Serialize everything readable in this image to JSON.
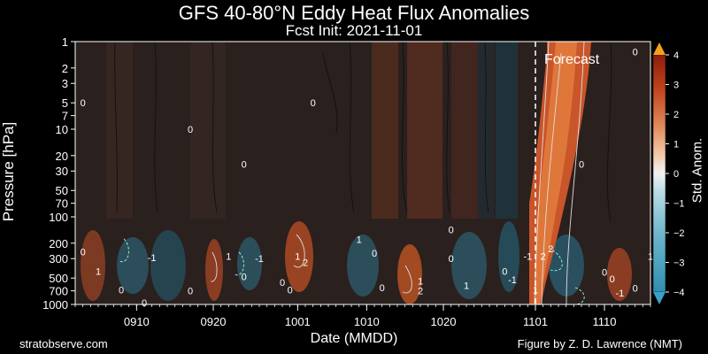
{
  "chart_data": {
    "type": "heatmap",
    "title": "GFS 40-80°N Eddy Heat Flux Anomalies",
    "subtitle": "Fcst Init: 2021-11-01",
    "xlabel": "Date (MMDD)",
    "ylabel": "Pressure [hPa]",
    "x_range": [
      "2021-09-02",
      "2021-11-16"
    ],
    "x_ticks": [
      "0910",
      "0920",
      "1001",
      "1010",
      "1020",
      "1101",
      "1110"
    ],
    "y_scale": "log",
    "y_inverted": true,
    "y_range": [
      1000,
      1
    ],
    "y_ticks": [
      1,
      2,
      3,
      5,
      7,
      10,
      20,
      30,
      50,
      70,
      100,
      200,
      300,
      500,
      700,
      1000
    ],
    "forecast_start": "1101",
    "forecast_label": "Forecast",
    "colorbar": {
      "label": "Std. Anom.",
      "ticks": [
        4,
        3,
        2,
        1,
        0,
        -1,
        -2,
        -3,
        -4
      ],
      "range": [
        -4,
        4
      ],
      "colors": [
        "#2f8fb0",
        "#6fb6cc",
        "#b7dbe4",
        "#f2f2f2",
        "#f2c9a8",
        "#e08a5a",
        "#c2461e",
        "#8c1d0a",
        "#f2a21a"
      ]
    },
    "contour_labels": [
      {
        "date": "0903",
        "p": 5,
        "v": "0"
      },
      {
        "date": "0917",
        "p": 10,
        "v": "0"
      },
      {
        "date": "0924",
        "p": 25,
        "v": "0"
      },
      {
        "date": "1003",
        "p": 5,
        "v": "0"
      },
      {
        "date": "1021",
        "p": 140,
        "v": "0"
      },
      {
        "date": "1107",
        "p": 25,
        "v": "0"
      },
      {
        "date": "1114",
        "p": 1.3,
        "v": "0"
      },
      {
        "date": "0903",
        "p": 250,
        "v": "0"
      },
      {
        "date": "0905",
        "p": 420,
        "v": "1"
      },
      {
        "date": "0908",
        "p": 680,
        "v": "0"
      },
      {
        "date": "0912",
        "p": 290,
        "v": "-1"
      },
      {
        "date": "0911",
        "p": 950,
        "v": "0"
      },
      {
        "date": "0917",
        "p": 700,
        "v": "0"
      },
      {
        "date": "0922",
        "p": 280,
        "v": "1"
      },
      {
        "date": "0924",
        "p": 480,
        "v": "0"
      },
      {
        "date": "0926",
        "p": 300,
        "v": "-1"
      },
      {
        "date": "0929",
        "p": 560,
        "v": "0"
      },
      {
        "date": "0930",
        "p": 680,
        "v": "0"
      },
      {
        "date": "1001",
        "p": 280,
        "v": "1"
      },
      {
        "date": "1002",
        "p": 330,
        "v": "2"
      },
      {
        "date": "1009",
        "p": 180,
        "v": "1"
      },
      {
        "date": "1011",
        "p": 260,
        "v": "0"
      },
      {
        "date": "1012",
        "p": 640,
        "v": "0"
      },
      {
        "date": "1017",
        "p": 540,
        "v": "1"
      },
      {
        "date": "1017",
        "p": 700,
        "v": "2"
      },
      {
        "date": "1021",
        "p": 300,
        "v": "0"
      },
      {
        "date": "1023",
        "p": 610,
        "v": "1"
      },
      {
        "date": "1028",
        "p": 420,
        "v": "0"
      },
      {
        "date": "1029",
        "p": 520,
        "v": "-1"
      },
      {
        "date": "1031",
        "p": 280,
        "v": "-1"
      },
      {
        "date": "1103",
        "p": 230,
        "v": "2"
      },
      {
        "date": "1102",
        "p": 280,
        "v": "2"
      },
      {
        "date": "1101",
        "p": 680,
        "v": "1"
      },
      {
        "date": "1110",
        "p": 430,
        "v": "0"
      },
      {
        "date": "1111",
        "p": 510,
        "v": "0"
      },
      {
        "date": "1112",
        "p": 740,
        "v": "-1"
      },
      {
        "date": "1114",
        "p": 650,
        "v": "0"
      },
      {
        "date": "1116",
        "p": 280,
        "v": "1"
      }
    ]
  },
  "credits": {
    "left": "stratobserve.com",
    "right": "Figure by Z. D. Lawrence (NMT)"
  }
}
